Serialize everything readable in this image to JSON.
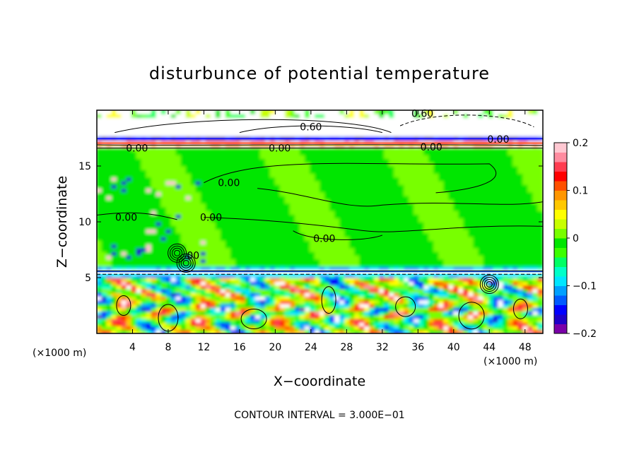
{
  "chart_data": {
    "type": "heatmap",
    "title": "disturbunce of potential temperature",
    "xlabel": "X−coordinate",
    "ylabel": "Z−coordinate",
    "x_unit": "(×1000 m)",
    "y_unit": "(×1000 m)",
    "xlim": [
      0,
      50
    ],
    "ylim": [
      0,
      20
    ],
    "x_ticks": [
      4,
      8,
      12,
      16,
      20,
      24,
      28,
      32,
      36,
      40,
      44,
      48
    ],
    "y_ticks": [
      5,
      10,
      15
    ],
    "colorbar": {
      "min": -0.2,
      "max": 0.2,
      "ticks": [
        0.2,
        0.1,
        0,
        -0.1,
        -0.2
      ],
      "tick_labels": [
        "0.2",
        "0.1",
        "0",
        "−0.1",
        "−0.2"
      ],
      "colors": [
        "#7a00a8",
        "#1e00c8",
        "#0000ff",
        "#005aff",
        "#00a0ff",
        "#00e6ff",
        "#00ffc8",
        "#00ff64",
        "#3cff00",
        "#00e600",
        "#78ff00",
        "#c8ff00",
        "#ffff00",
        "#ffc800",
        "#ff9600",
        "#ff5000",
        "#ff0000",
        "#ff3c50",
        "#ff8ca0",
        "#ffc8d2"
      ]
    },
    "contour_labels": [
      {
        "text": "0.60",
        "x": 36.5,
        "y": 19.7
      },
      {
        "text": "0.60",
        "x": 24.0,
        "y": 18.5
      },
      {
        "text": "0.00",
        "x": 4.5,
        "y": 16.6
      },
      {
        "text": "0.00",
        "x": 20.5,
        "y": 16.6
      },
      {
        "text": "0.00",
        "x": 37.5,
        "y": 16.7
      },
      {
        "text": "0.00",
        "x": 45.0,
        "y": 17.4
      },
      {
        "text": "0.00",
        "x": 14.8,
        "y": 13.5
      },
      {
        "text": "0.00",
        "x": 3.3,
        "y": 10.4
      },
      {
        "text": "0.00",
        "x": 12.8,
        "y": 10.4
      },
      {
        "text": "0.00",
        "x": 25.5,
        "y": 8.5
      },
      {
        "text": "00",
        "x": 10.8,
        "y": 7.0
      }
    ],
    "footer": "CONTOUR INTERVAL = 3.000E−01"
  }
}
